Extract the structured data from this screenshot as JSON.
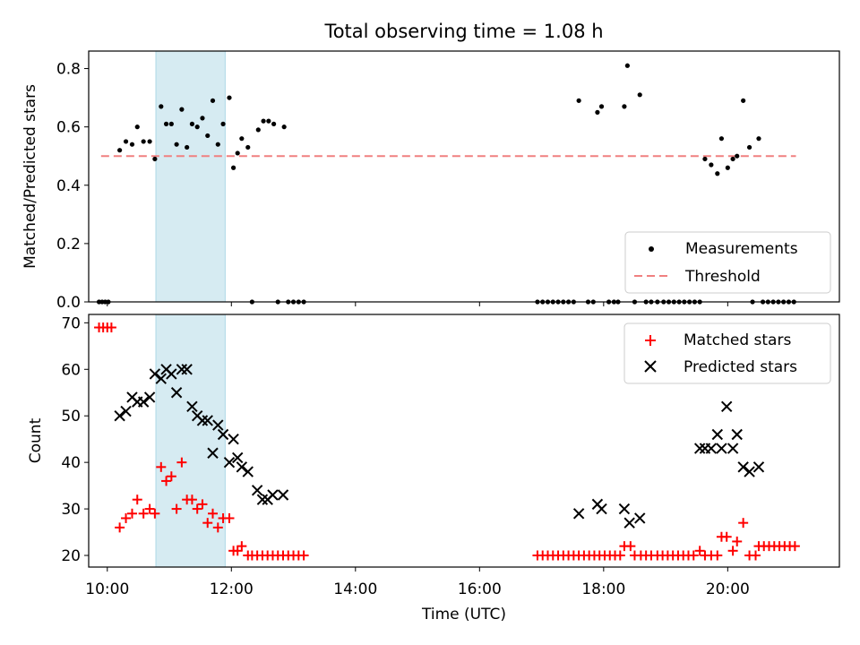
{
  "figure_title": "Total observing time = 1.08 h",
  "chart_data": [
    {
      "type": "scatter",
      "ylabel": "Matched/Predicted stars",
      "ylim": [
        0,
        0.86
      ],
      "xlim": [
        "09:42",
        "21:48"
      ],
      "yticks": [
        "0.0",
        "0.2",
        "0.4",
        "0.6",
        "0.8"
      ],
      "highlight_span": [
        "10:47",
        "11:54"
      ],
      "legend": {
        "placement": "lower-right",
        "entries": [
          {
            "label": "Measurements",
            "marker": "dot",
            "color": "#000000"
          },
          {
            "label": "Threshold",
            "marker": "dashed-line",
            "color": "#f08080"
          }
        ]
      },
      "threshold": {
        "y": 0.5,
        "x_from": "09:54",
        "x_to": "21:06"
      },
      "series": [
        {
          "name": "Measurements",
          "points": [
            [
              "09:52",
              0
            ],
            [
              "09:55",
              0
            ],
            [
              "09:58",
              0
            ],
            [
              "10:01",
              0
            ],
            [
              "10:12",
              0.52
            ],
            [
              "10:18",
              0.55
            ],
            [
              "10:24",
              0.54
            ],
            [
              "10:29",
              0.6
            ],
            [
              "10:35",
              0.55
            ],
            [
              "10:41",
              0.55
            ],
            [
              "10:46",
              0.49
            ],
            [
              "10:52",
              0.67
            ],
            [
              "10:57",
              0.61
            ],
            [
              "11:02",
              0.61
            ],
            [
              "11:07",
              0.54
            ],
            [
              "11:12",
              0.66
            ],
            [
              "11:17",
              0.53
            ],
            [
              "11:22",
              0.61
            ],
            [
              "11:27",
              0.6
            ],
            [
              "11:32",
              0.63
            ],
            [
              "11:37",
              0.57
            ],
            [
              "11:42",
              0.69
            ],
            [
              "11:47",
              0.54
            ],
            [
              "11:52",
              0.61
            ],
            [
              "11:58",
              0.7
            ],
            [
              "12:02",
              0.46
            ],
            [
              "12:06",
              0.51
            ],
            [
              "12:10",
              0.56
            ],
            [
              "12:16",
              0.53
            ],
            [
              "12:20",
              0
            ],
            [
              "12:26",
              0.59
            ],
            [
              "12:31",
              0.62
            ],
            [
              "12:36",
              0.62
            ],
            [
              "12:41",
              0.61
            ],
            [
              "12:45",
              0
            ],
            [
              "12:51",
              0.6
            ],
            [
              "12:55",
              0
            ],
            [
              "13:00",
              0
            ],
            [
              "13:05",
              0
            ],
            [
              "13:10",
              0
            ],
            [
              "16:56",
              0
            ],
            [
              "17:01",
              0
            ],
            [
              "17:06",
              0
            ],
            [
              "17:11",
              0
            ],
            [
              "17:16",
              0
            ],
            [
              "17:21",
              0
            ],
            [
              "17:26",
              0
            ],
            [
              "17:31",
              0
            ],
            [
              "17:36",
              0.69
            ],
            [
              "17:45",
              0
            ],
            [
              "17:50",
              0
            ],
            [
              "17:54",
              0.65
            ],
            [
              "17:58",
              0.67
            ],
            [
              "18:05",
              0
            ],
            [
              "18:10",
              0
            ],
            [
              "18:14",
              0
            ],
            [
              "18:20",
              0.67
            ],
            [
              "18:23",
              0.81
            ],
            [
              "18:30",
              0
            ],
            [
              "18:35",
              0.71
            ],
            [
              "18:41",
              0
            ],
            [
              "18:46",
              0
            ],
            [
              "18:52",
              0
            ],
            [
              "18:58",
              0
            ],
            [
              "19:03",
              0
            ],
            [
              "19:08",
              0
            ],
            [
              "19:13",
              0
            ],
            [
              "19:18",
              0
            ],
            [
              "19:23",
              0
            ],
            [
              "19:28",
              0
            ],
            [
              "19:33",
              0
            ],
            [
              "19:38",
              0.49
            ],
            [
              "19:44",
              0.47
            ],
            [
              "19:50",
              0.44
            ],
            [
              "19:54",
              0.56
            ],
            [
              "20:00",
              0.46
            ],
            [
              "20:05",
              0.49
            ],
            [
              "20:09",
              0.5
            ],
            [
              "20:15",
              0.69
            ],
            [
              "20:21",
              0.53
            ],
            [
              "20:24",
              0
            ],
            [
              "20:30",
              0.56
            ],
            [
              "20:34",
              0
            ],
            [
              "20:39",
              0
            ],
            [
              "20:44",
              0
            ],
            [
              "20:49",
              0
            ],
            [
              "20:54",
              0
            ],
            [
              "20:59",
              0
            ],
            [
              "21:04",
              0
            ]
          ]
        }
      ]
    },
    {
      "type": "scatter",
      "xlabel": "Time (UTC)",
      "ylabel": "Count",
      "ylim": [
        17.5,
        71.8
      ],
      "xlim": [
        "09:42",
        "21:48"
      ],
      "xticks": [
        "10:00",
        "12:00",
        "14:00",
        "16:00",
        "18:00",
        "20:00"
      ],
      "yticks": [
        "20",
        "30",
        "40",
        "50",
        "60",
        "70"
      ],
      "highlight_span": [
        "10:47",
        "11:54"
      ],
      "legend": {
        "placement": "upper-right",
        "entries": [
          {
            "label": "Matched stars",
            "marker": "plus",
            "color": "#ff0000"
          },
          {
            "label": "Predicted stars",
            "marker": "x",
            "color": "#000000"
          }
        ]
      },
      "series": [
        {
          "name": "Matched stars",
          "points": [
            [
              "09:52",
              69
            ],
            [
              "09:56",
              69
            ],
            [
              "10:00",
              69
            ],
            [
              "10:04",
              69
            ],
            [
              "10:12",
              26
            ],
            [
              "10:18",
              28
            ],
            [
              "10:24",
              29
            ],
            [
              "10:29",
              32
            ],
            [
              "10:35",
              29
            ],
            [
              "10:41",
              30
            ],
            [
              "10:46",
              29
            ],
            [
              "10:52",
              39
            ],
            [
              "10:57",
              36
            ],
            [
              "11:02",
              37
            ],
            [
              "11:07",
              30
            ],
            [
              "11:12",
              40
            ],
            [
              "11:17",
              32
            ],
            [
              "11:22",
              32
            ],
            [
              "11:27",
              30
            ],
            [
              "11:32",
              31
            ],
            [
              "11:37",
              27
            ],
            [
              "11:42",
              29
            ],
            [
              "11:47",
              26
            ],
            [
              "11:52",
              28
            ],
            [
              "11:58",
              28
            ],
            [
              "12:02",
              21
            ],
            [
              "12:06",
              21
            ],
            [
              "12:10",
              22
            ],
            [
              "12:16",
              20
            ],
            [
              "12:20",
              20
            ],
            [
              "12:25",
              20
            ],
            [
              "12:30",
              20
            ],
            [
              "12:35",
              20
            ],
            [
              "12:40",
              20
            ],
            [
              "12:45",
              20
            ],
            [
              "12:50",
              20
            ],
            [
              "12:55",
              20
            ],
            [
              "13:00",
              20
            ],
            [
              "13:05",
              20
            ],
            [
              "13:10",
              20
            ],
            [
              "16:56",
              20
            ],
            [
              "17:01",
              20
            ],
            [
              "17:06",
              20
            ],
            [
              "17:11",
              20
            ],
            [
              "17:16",
              20
            ],
            [
              "17:21",
              20
            ],
            [
              "17:26",
              20
            ],
            [
              "17:31",
              20
            ],
            [
              "17:36",
              20
            ],
            [
              "17:41",
              20
            ],
            [
              "17:46",
              20
            ],
            [
              "17:51",
              20
            ],
            [
              "17:56",
              20
            ],
            [
              "18:01",
              20
            ],
            [
              "18:06",
              20
            ],
            [
              "18:11",
              20
            ],
            [
              "18:16",
              20
            ],
            [
              "18:20",
              22
            ],
            [
              "18:26",
              22
            ],
            [
              "18:30",
              20
            ],
            [
              "18:36",
              20
            ],
            [
              "18:41",
              20
            ],
            [
              "18:46",
              20
            ],
            [
              "18:52",
              20
            ],
            [
              "18:57",
              20
            ],
            [
              "19:02",
              20
            ],
            [
              "19:07",
              20
            ],
            [
              "19:12",
              20
            ],
            [
              "19:17",
              20
            ],
            [
              "19:22",
              20
            ],
            [
              "19:27",
              20
            ],
            [
              "19:33",
              21
            ],
            [
              "19:38",
              20
            ],
            [
              "19:44",
              20
            ],
            [
              "19:50",
              20
            ],
            [
              "19:54",
              24
            ],
            [
              "19:59",
              24
            ],
            [
              "20:05",
              21
            ],
            [
              "20:09",
              23
            ],
            [
              "20:15",
              27
            ],
            [
              "20:21",
              20
            ],
            [
              "20:27",
              20
            ],
            [
              "20:30",
              22
            ],
            [
              "20:35",
              22
            ],
            [
              "20:40",
              22
            ],
            [
              "20:45",
              22
            ],
            [
              "20:50",
              22
            ],
            [
              "20:55",
              22
            ],
            [
              "21:00",
              22
            ],
            [
              "21:05",
              22
            ]
          ]
        },
        {
          "name": "Predicted stars",
          "points": [
            [
              "10:12",
              50
            ],
            [
              "10:18",
              51
            ],
            [
              "10:24",
              54
            ],
            [
              "10:29",
              53
            ],
            [
              "10:35",
              53
            ],
            [
              "10:41",
              54
            ],
            [
              "10:46",
              59
            ],
            [
              "10:52",
              58
            ],
            [
              "10:57",
              60
            ],
            [
              "11:02",
              59
            ],
            [
              "11:07",
              55
            ],
            [
              "11:12",
              60
            ],
            [
              "11:17",
              60
            ],
            [
              "11:22",
              52
            ],
            [
              "11:27",
              50
            ],
            [
              "11:32",
              49
            ],
            [
              "11:37",
              49
            ],
            [
              "11:42",
              42
            ],
            [
              "11:47",
              48
            ],
            [
              "11:52",
              46
            ],
            [
              "11:58",
              40
            ],
            [
              "12:02",
              45
            ],
            [
              "12:06",
              41
            ],
            [
              "12:10",
              39
            ],
            [
              "12:16",
              38
            ],
            [
              "12:25",
              34
            ],
            [
              "12:30",
              32
            ],
            [
              "12:35",
              32
            ],
            [
              "12:40",
              33
            ],
            [
              "12:50",
              33
            ],
            [
              "17:36",
              29
            ],
            [
              "17:54",
              31
            ],
            [
              "17:58",
              30
            ],
            [
              "18:20",
              30
            ],
            [
              "18:25",
              27
            ],
            [
              "18:35",
              28
            ],
            [
              "19:33",
              43
            ],
            [
              "19:38",
              43
            ],
            [
              "19:44",
              43
            ],
            [
              "19:50",
              46
            ],
            [
              "19:54",
              43
            ],
            [
              "19:59",
              52
            ],
            [
              "20:05",
              43
            ],
            [
              "20:09",
              46
            ],
            [
              "20:15",
              39
            ],
            [
              "20:21",
              38
            ],
            [
              "20:30",
              39
            ]
          ]
        }
      ]
    }
  ]
}
